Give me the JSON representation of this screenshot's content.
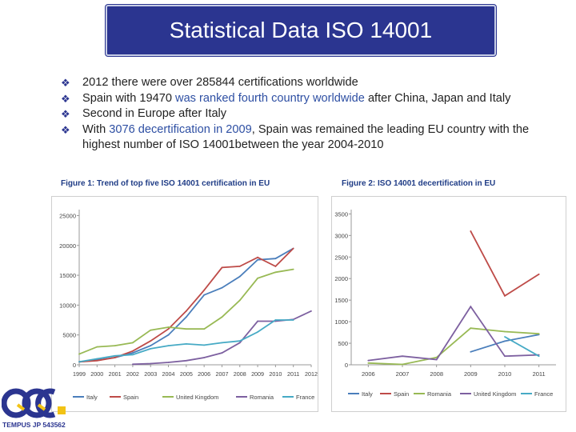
{
  "title": "Statistical Data ISO 14001",
  "bullets": [
    {
      "segments": [
        {
          "t": "2012 there were over  285844 certifications worldwide",
          "c": ""
        }
      ]
    },
    {
      "segments": [
        {
          "t": "Spain with 19470 ",
          "c": ""
        },
        {
          "t": "was ranked fourth country worldwide",
          "c": "blue"
        },
        {
          "t": " after China, Japan and Italy",
          "c": ""
        }
      ]
    },
    {
      "segments": [
        {
          "t": "Second in Europe after Italy",
          "c": ""
        }
      ]
    },
    {
      "segments": [
        {
          "t": "With ",
          "c": ""
        },
        {
          "t": "3076 decertification in 2009",
          "c": "blue"
        },
        {
          "t": ", Spain was remained the leading EU country with the highest number of ISO 14001between the year 2004-2010",
          "c": ""
        }
      ]
    }
  ],
  "captions": {
    "fig1": "Figure 1: Trend of top five ISO 14001 certification in EU",
    "fig2": "Figure 2: ISO 14001 decertification in EU"
  },
  "logo_text": "TEMPUS JP 543562",
  "chart_data": [
    {
      "type": "line",
      "x": [
        "1999",
        "2000",
        "2001",
        "2002",
        "2003",
        "2004",
        "2005",
        "2006",
        "2007",
        "2008",
        "2009",
        "2010",
        "2011",
        "2012"
      ],
      "yticks": [
        0,
        5000,
        10000,
        15000,
        20000,
        25000
      ],
      "ylim": [
        0,
        26000
      ],
      "series": [
        {
          "name": "Italy",
          "color": "#4a7ebb",
          "values": [
            500,
            800,
            1200,
            2000,
            3200,
            5000,
            8000,
            11700,
            12900,
            14800,
            17600,
            17800,
            19500,
            null
          ]
        },
        {
          "name": "Spain",
          "color": "#be4b48",
          "values": [
            500,
            700,
            1200,
            2300,
            4000,
            6000,
            9000,
            12500,
            16300,
            16500,
            18000,
            16500,
            19500,
            null
          ]
        },
        {
          "name": "United Kingdom",
          "color": "#98b954",
          "values": [
            1800,
            3000,
            3200,
            3700,
            5800,
            6300,
            6000,
            6000,
            8000,
            10800,
            14500,
            15500,
            16000,
            null
          ]
        },
        {
          "name": "Romania",
          "color": "#7d60a0",
          "values": [
            null,
            null,
            null,
            100,
            200,
            400,
            700,
            1200,
            2000,
            3700,
            7300,
            7300,
            7600,
            9000
          ]
        },
        {
          "name": "France",
          "color": "#46aac5",
          "values": [
            500,
            1000,
            1500,
            1700,
            2700,
            3200,
            3500,
            3300,
            3700,
            4000,
            5500,
            7500,
            7500,
            null
          ]
        }
      ],
      "legend": "bottom"
    },
    {
      "type": "line",
      "x": [
        "2006",
        "2007",
        "2008",
        "2009",
        "2010",
        "2011"
      ],
      "yticks": [
        0,
        500,
        1000,
        1500,
        2000,
        2500,
        3000,
        3500
      ],
      "ylim": [
        0,
        3600
      ],
      "series": [
        {
          "name": "Italy",
          "color": "#4a7ebb",
          "values": [
            null,
            null,
            null,
            300,
            550,
            700
          ]
        },
        {
          "name": "Spain",
          "color": "#be4b48",
          "values": [
            null,
            null,
            null,
            3100,
            1600,
            2100
          ]
        },
        {
          "name": "Romania",
          "color": "#98b954",
          "values": [
            40,
            10,
            170,
            850,
            770,
            720
          ]
        },
        {
          "name": "United Kingdom",
          "color": "#7d60a0",
          "values": [
            100,
            200,
            120,
            1350,
            200,
            230
          ]
        },
        {
          "name": "France",
          "color": "#46aac5",
          "values": [
            null,
            null,
            null,
            null,
            650,
            200
          ]
        }
      ],
      "legend": "bottom"
    }
  ]
}
